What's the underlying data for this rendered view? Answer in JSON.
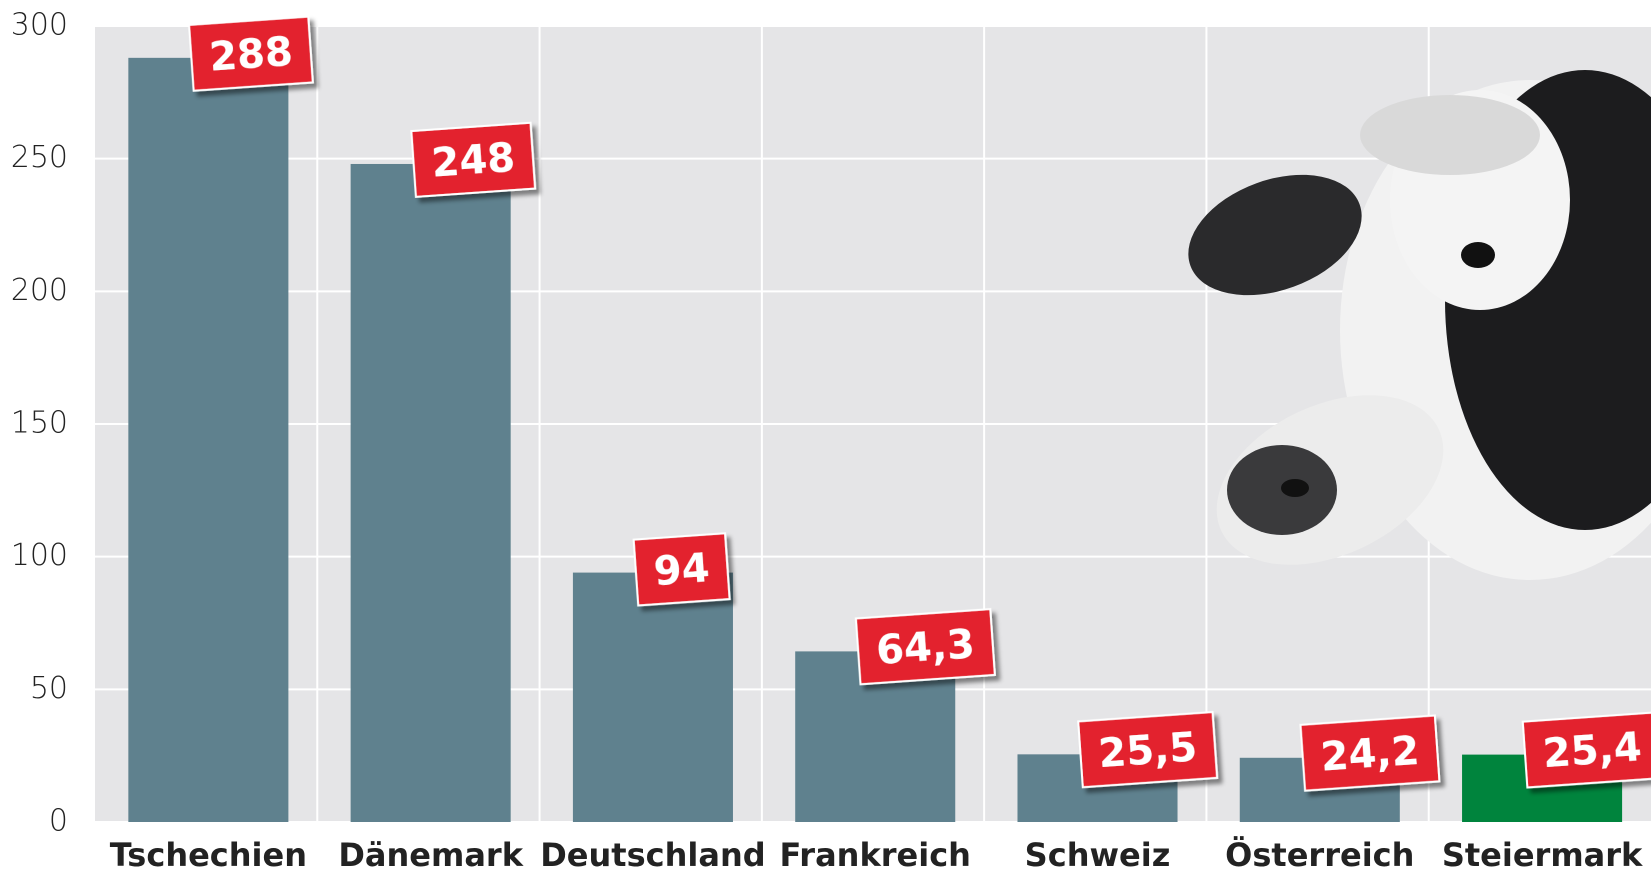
{
  "chart_data": {
    "type": "bar",
    "categories": [
      "Tschechien",
      "Dänemark",
      "Deutschland",
      "Frankreich",
      "Schweiz",
      "Österreich",
      "Steiermark"
    ],
    "values": [
      288,
      248,
      94,
      64.3,
      25.5,
      24.2,
      25.4
    ],
    "value_labels": [
      "288",
      "248",
      "94",
      "64,3",
      "25,5",
      "24,2",
      "25,4"
    ],
    "colors": [
      "#5f818e",
      "#5f818e",
      "#5f818e",
      "#5f818e",
      "#5f818e",
      "#5f818e",
      "#00843d"
    ],
    "label_color": "#e3232d",
    "ylim": [
      0,
      300
    ],
    "yticks": [
      0,
      50,
      100,
      150,
      200,
      250,
      300
    ],
    "grid": true
  }
}
